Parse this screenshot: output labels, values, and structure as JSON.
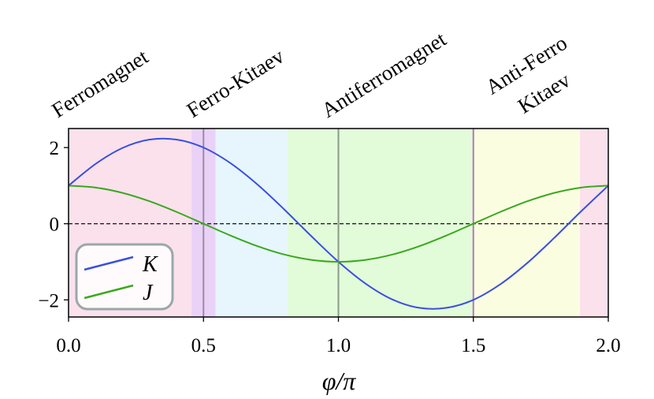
{
  "chart_data": {
    "type": "line",
    "x": [
      0,
      0.1,
      0.2,
      0.3,
      0.4,
      0.5,
      0.6,
      0.7,
      0.8,
      0.9,
      1.0,
      1.1,
      1.2,
      1.3,
      1.4,
      1.5,
      1.6,
      1.7,
      1.8,
      1.9,
      2.0
    ],
    "series": [
      {
        "name": "K",
        "color": "#3a4fe0",
        "values": [
          1,
          1.57,
          1.99,
          2.21,
          2.21,
          2,
          1.59,
          1.03,
          0.37,
          -0.33,
          -1,
          -1.57,
          -1.99,
          -2.21,
          -2.21,
          -2,
          -1.59,
          -1.03,
          -0.37,
          0.33,
          1
        ]
      },
      {
        "name": "J",
        "color": "#3aa81f",
        "values": [
          1,
          0.95,
          0.81,
          0.59,
          0.31,
          0,
          -0.31,
          -0.59,
          -0.81,
          -0.95,
          -1,
          -0.95,
          -0.81,
          -0.59,
          -0.31,
          0,
          0.31,
          0.59,
          0.81,
          0.95,
          1
        ]
      }
    ],
    "x_label": "φ/π",
    "xlim": [
      0,
      2
    ],
    "ylim": [
      -2.45,
      2.5
    ],
    "xticks": [
      {
        "value": 0,
        "label": "0.0"
      },
      {
        "value": 0.5,
        "label": "0.5"
      },
      {
        "value": 1,
        "label": "1.0"
      },
      {
        "value": 1.5,
        "label": "1.5"
      },
      {
        "value": 2,
        "label": "2.0"
      }
    ],
    "yticks": [
      {
        "value": -2,
        "label": "−2"
      },
      0,
      2
    ],
    "hline": 0,
    "regions": [
      {
        "from": 0,
        "to": 0.455,
        "color": "#fbe1ec"
      },
      {
        "from": 0.455,
        "to": 0.545,
        "color": "#ead2f7"
      },
      {
        "from": 0.545,
        "to": 0.81,
        "color": "#e6f6fc"
      },
      {
        "from": 0.81,
        "to": 1.5,
        "color": "#e2fbd9"
      },
      {
        "from": 1.5,
        "to": 1.895,
        "color": "#fbfde1"
      },
      {
        "from": 1.895,
        "to": 2,
        "color": "#fbe1ec"
      }
    ],
    "vlines": [
      {
        "x": 0.5,
        "color": "#9a8aa6"
      },
      {
        "x": 1,
        "color": "#8a9a8a"
      },
      {
        "x": 1.5,
        "color": "#b07ab8"
      }
    ],
    "annotations": [
      {
        "x": 0,
        "lines": [
          "Ferromagnet"
        ]
      },
      {
        "x": 0.5,
        "lines": [
          "Ferro-Kitaev"
        ]
      },
      {
        "x": 1,
        "lines": [
          "Antiferromagnet"
        ]
      },
      {
        "x": 1.5,
        "lines": [
          "Anti-Ferro",
          "Kitaev"
        ]
      }
    ],
    "legend": "lower left"
  }
}
